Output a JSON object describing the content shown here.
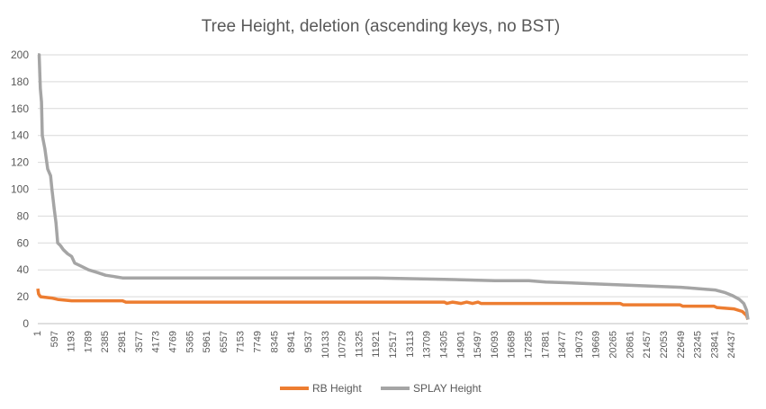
{
  "chart_data": {
    "type": "line",
    "title": "Tree Height, deletion (ascending keys, no BST)",
    "xlabel": "",
    "ylabel": "",
    "ylim": [
      0,
      200
    ],
    "yticks": [
      "0",
      "20",
      "40",
      "60",
      "80",
      "100",
      "120",
      "140",
      "160",
      "180",
      "200"
    ],
    "xlim": [
      1,
      25000
    ],
    "xticks": [
      "1",
      "597",
      "1193",
      "1789",
      "2385",
      "2981",
      "3577",
      "4173",
      "4769",
      "5365",
      "5961",
      "6557",
      "7153",
      "7749",
      "8345",
      "8941",
      "9537",
      "10133",
      "10729",
      "11325",
      "11921",
      "12517",
      "13113",
      "13709",
      "14305",
      "14901",
      "15497",
      "16093",
      "16689",
      "17285",
      "17881",
      "18477",
      "19073",
      "19669",
      "20265",
      "20861",
      "21457",
      "22053",
      "22649",
      "23245",
      "23841",
      "24437"
    ],
    "grid": true,
    "legend_position": "bottom",
    "series": [
      {
        "name": "RB Height",
        "color": "#ED7D31",
        "points": [
          [
            1,
            26
          ],
          [
            30,
            22
          ],
          [
            100,
            20
          ],
          [
            500,
            19
          ],
          [
            700,
            18
          ],
          [
            1193,
            17
          ],
          [
            2981,
            17
          ],
          [
            3100,
            16
          ],
          [
            14305,
            16
          ],
          [
            14400,
            15
          ],
          [
            14600,
            16
          ],
          [
            14901,
            15
          ],
          [
            15100,
            16
          ],
          [
            15300,
            15
          ],
          [
            15497,
            16
          ],
          [
            15600,
            15
          ],
          [
            20500,
            15
          ],
          [
            20600,
            14
          ],
          [
            22600,
            14
          ],
          [
            22700,
            13
          ],
          [
            23800,
            13
          ],
          [
            23900,
            12
          ],
          [
            24500,
            11
          ],
          [
            24800,
            9
          ],
          [
            24950,
            6
          ],
          [
            25000,
            3
          ]
        ]
      },
      {
        "name": "SPLAY Height",
        "color": "#A5A5A5",
        "points": [
          [
            1,
            200
          ],
          [
            50,
            200
          ],
          [
            90,
            175
          ],
          [
            130,
            165
          ],
          [
            160,
            140
          ],
          [
            250,
            130
          ],
          [
            350,
            115
          ],
          [
            450,
            110
          ],
          [
            500,
            100
          ],
          [
            580,
            85
          ],
          [
            640,
            75
          ],
          [
            700,
            60
          ],
          [
            800,
            58
          ],
          [
            900,
            55
          ],
          [
            1050,
            52
          ],
          [
            1193,
            50
          ],
          [
            1300,
            45
          ],
          [
            1500,
            43
          ],
          [
            1789,
            40
          ],
          [
            2100,
            38
          ],
          [
            2385,
            36
          ],
          [
            2700,
            35
          ],
          [
            2981,
            34
          ],
          [
            5961,
            34
          ],
          [
            8941,
            34
          ],
          [
            11921,
            34
          ],
          [
            14305,
            33
          ],
          [
            16093,
            32
          ],
          [
            17285,
            32
          ],
          [
            17881,
            31
          ],
          [
            19073,
            30
          ],
          [
            20265,
            29
          ],
          [
            21457,
            28
          ],
          [
            22649,
            27
          ],
          [
            23245,
            26
          ],
          [
            23841,
            25
          ],
          [
            24200,
            23
          ],
          [
            24437,
            21
          ],
          [
            24700,
            18
          ],
          [
            24850,
            15
          ],
          [
            24950,
            10
          ],
          [
            25000,
            3
          ]
        ]
      }
    ]
  }
}
